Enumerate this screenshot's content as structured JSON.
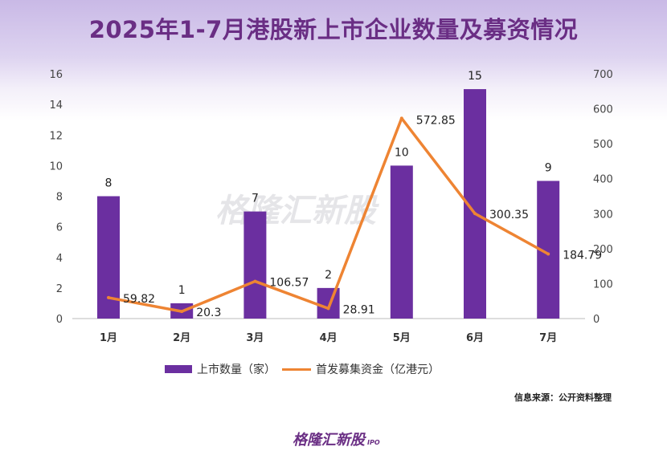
{
  "title": "2025年1-7月港股新上市企业数量及募资情况",
  "legend": {
    "bar": "上市数量（家）",
    "line": "首发募集资金（亿港元）"
  },
  "source": "信息来源：公开资料整理",
  "logo": {
    "text": "格隆汇新股",
    "sub": "IPO"
  },
  "colors": {
    "bar": "#6b2fa0",
    "line": "#ee8433"
  },
  "chart_data": {
    "type": "bar+line",
    "title": "2025年1-7月港股新上市企业数量及募资情况",
    "categories": [
      "1月",
      "2月",
      "3月",
      "4月",
      "5月",
      "6月",
      "7月"
    ],
    "series": [
      {
        "name": "上市数量（家）",
        "type": "bar",
        "axis": "left",
        "values": [
          8,
          1,
          7,
          2,
          10,
          15,
          9
        ]
      },
      {
        "name": "首发募集资金（亿港元）",
        "type": "line",
        "axis": "right",
        "values": [
          59.82,
          20.3,
          106.57,
          28.91,
          572.85,
          300.35,
          184.79
        ]
      }
    ],
    "ylim_left": [
      0,
      16
    ],
    "yticks_left": [
      0,
      2,
      4,
      6,
      8,
      10,
      12,
      14,
      16
    ],
    "ylim_right": [
      0,
      700
    ],
    "yticks_right": [
      0,
      100,
      200,
      300,
      400,
      500,
      600,
      700
    ],
    "grid": false,
    "legend_position": "bottom"
  }
}
